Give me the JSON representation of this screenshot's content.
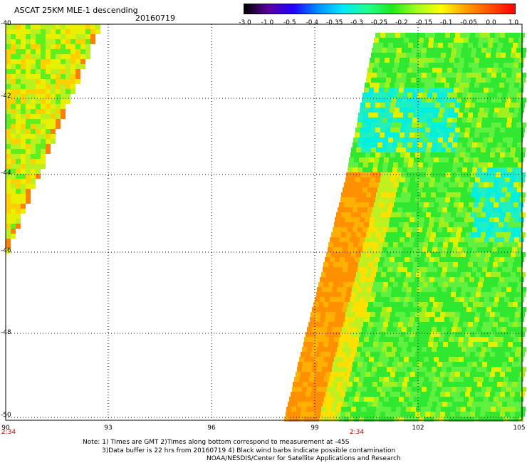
{
  "header": {
    "title": "ASCAT 25KM MLE-1 descending",
    "date": "20160719"
  },
  "colorbar": {
    "labels": [
      "-3.0",
      "-1.0",
      "-0.5",
      "-0.4",
      "-0.35",
      "-0.3",
      "-0.25",
      "-0.2",
      "-0.15",
      "-0.1",
      "-0.05",
      "0.0",
      "1.0"
    ],
    "colors": [
      "#000000",
      "#5a00a0",
      "#2000ff",
      "#0090ff",
      "#00e8ff",
      "#20ff90",
      "#20e820",
      "#a0ff20",
      "#ffff00",
      "#ffa000",
      "#ff5000",
      "#ff0000"
    ]
  },
  "map": {
    "lat_labels": [
      "-40",
      "-42",
      "-44",
      "-46",
      "-48",
      "-50"
    ],
    "lon_labels": [
      "90",
      "93",
      "96",
      "99",
      "102",
      "105"
    ],
    "time_labels": [
      "2:34",
      "2:34"
    ]
  },
  "footer": {
    "line1": "Note: 1) Times are GMT 2)Times along bottom correspond to measurement at -45S",
    "line2": "3)Data buffer is 22 hrs from 20160719 4) Black wind barbs indicate possible contamination",
    "line3": "NOAA/NESDIS/Center for Satellite Applications and Research"
  }
}
